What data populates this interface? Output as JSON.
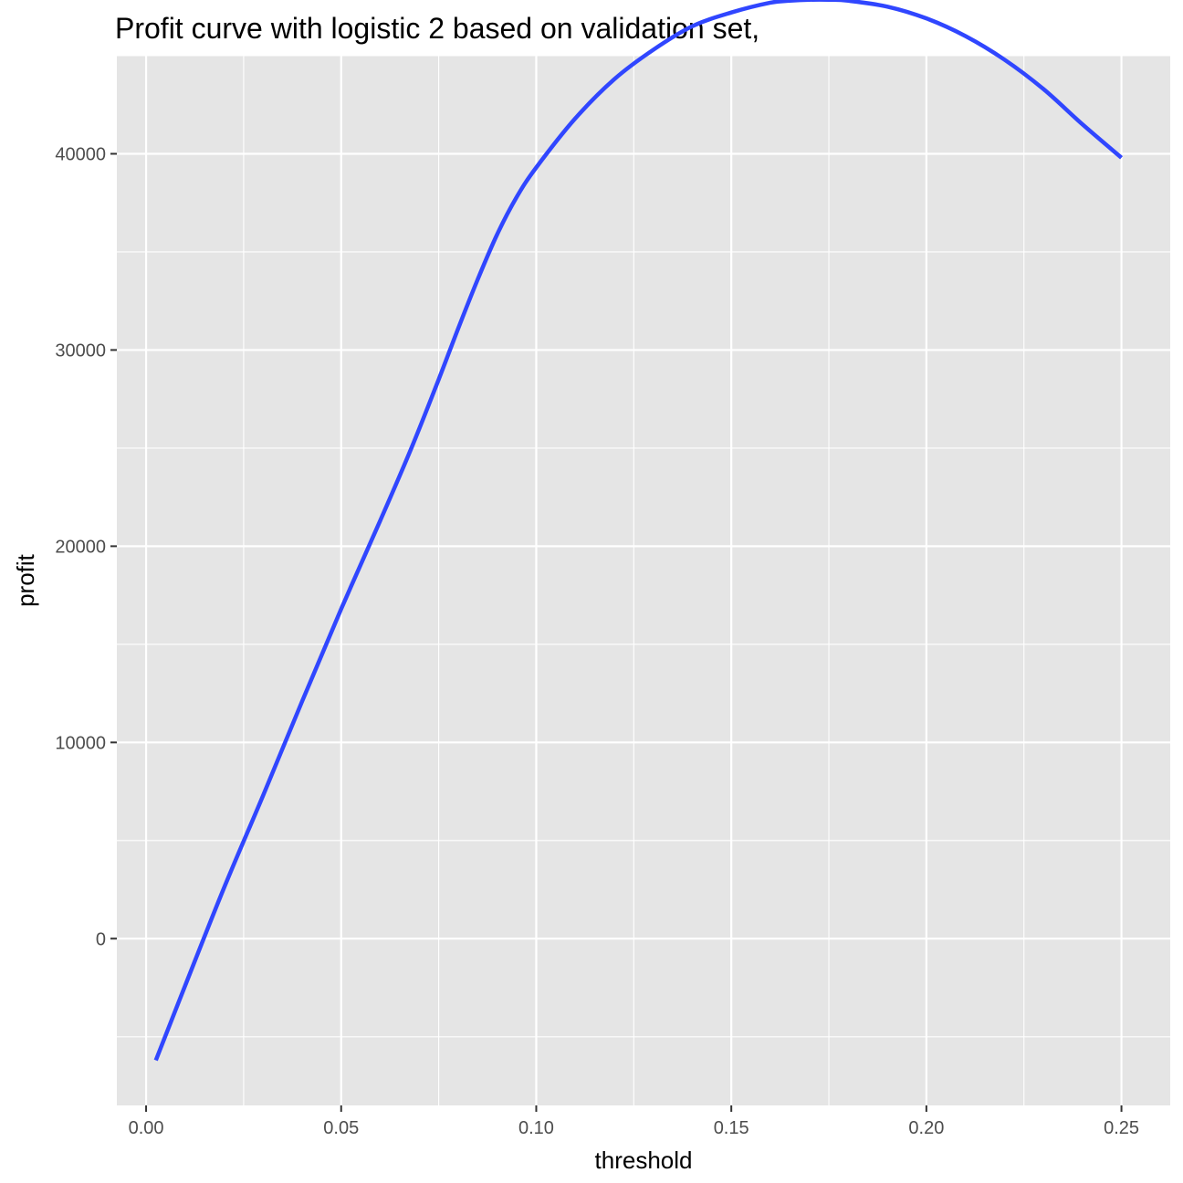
{
  "chart_data": {
    "type": "line",
    "title": "Profit curve with logistic 2 based on validation set,",
    "xlabel": "threshold",
    "ylabel": "profit",
    "xlim": [
      -0.0075,
      0.2625
    ],
    "ylim": [
      -8500,
      45000
    ],
    "x_ticks": [
      0.0,
      0.05,
      0.1,
      0.15,
      0.2,
      0.25
    ],
    "x_tick_labels": [
      "0.00",
      "0.05",
      "0.10",
      "0.15",
      "0.20",
      "0.25"
    ],
    "y_ticks": [
      0,
      10000,
      20000,
      30000,
      40000
    ],
    "y_tick_labels": [
      "0",
      "10000",
      "20000",
      "30000",
      "40000"
    ],
    "grid": true,
    "colors": {
      "panel_background": "#e5e5e5",
      "grid_line": "#ffffff",
      "series_line": "#3046ff",
      "tick_mark": "#333333"
    },
    "series": [
      {
        "values_x": [
          0.0025,
          0.01,
          0.02,
          0.03,
          0.04,
          0.05,
          0.06,
          0.068,
          0.075,
          0.08,
          0.085,
          0.09,
          0.095,
          0.1,
          0.11,
          0.12,
          0.13,
          0.14,
          0.15,
          0.16,
          0.165,
          0.17,
          0.175,
          0.18,
          0.19,
          0.2,
          0.21,
          0.22,
          0.23,
          0.24,
          0.25
        ],
        "values_y": [
          -6200,
          -2400,
          2600,
          7300,
          12100,
          16800,
          21300,
          25000,
          28500,
          31100,
          33600,
          35900,
          37800,
          39300,
          41800,
          43800,
          45300,
          46500,
          47200,
          47700,
          47800,
          47850,
          47850,
          47800,
          47500,
          46900,
          46000,
          44800,
          43300,
          41500,
          39800
        ]
      }
    ]
  }
}
